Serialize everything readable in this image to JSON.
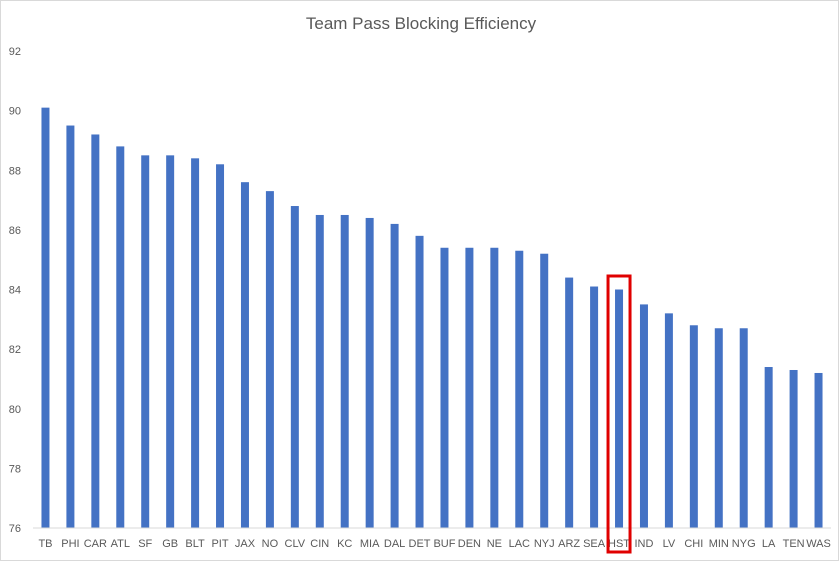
{
  "chart_data": {
    "type": "bar",
    "title": "Team Pass Blocking Efficiency",
    "xlabel": "",
    "ylabel": "",
    "ylim": [
      76,
      92
    ],
    "yticks": [
      76,
      78,
      80,
      82,
      84,
      86,
      88,
      90,
      92
    ],
    "categories": [
      "TB",
      "PHI",
      "CAR",
      "ATL",
      "SF",
      "GB",
      "BLT",
      "PIT",
      "JAX",
      "NO",
      "CLV",
      "CIN",
      "KC",
      "MIA",
      "DAL",
      "DET",
      "BUF",
      "DEN",
      "NE",
      "LAC",
      "NYJ",
      "ARZ",
      "SEA",
      "HST",
      "IND",
      "LV",
      "CHI",
      "MIN",
      "NYG",
      "LA",
      "TEN",
      "WAS"
    ],
    "values": [
      90.1,
      89.5,
      89.2,
      88.8,
      88.5,
      88.5,
      88.4,
      88.2,
      87.6,
      87.3,
      86.8,
      86.5,
      86.5,
      86.4,
      86.2,
      85.8,
      85.4,
      85.4,
      85.4,
      85.3,
      85.2,
      84.4,
      84.1,
      84.0,
      83.5,
      83.2,
      82.8,
      82.7,
      82.7,
      81.4,
      81.3,
      81.2
    ],
    "highlight": "HST",
    "grid": false,
    "bar_color": "#4472C4",
    "highlight_color": "#E00000"
  }
}
